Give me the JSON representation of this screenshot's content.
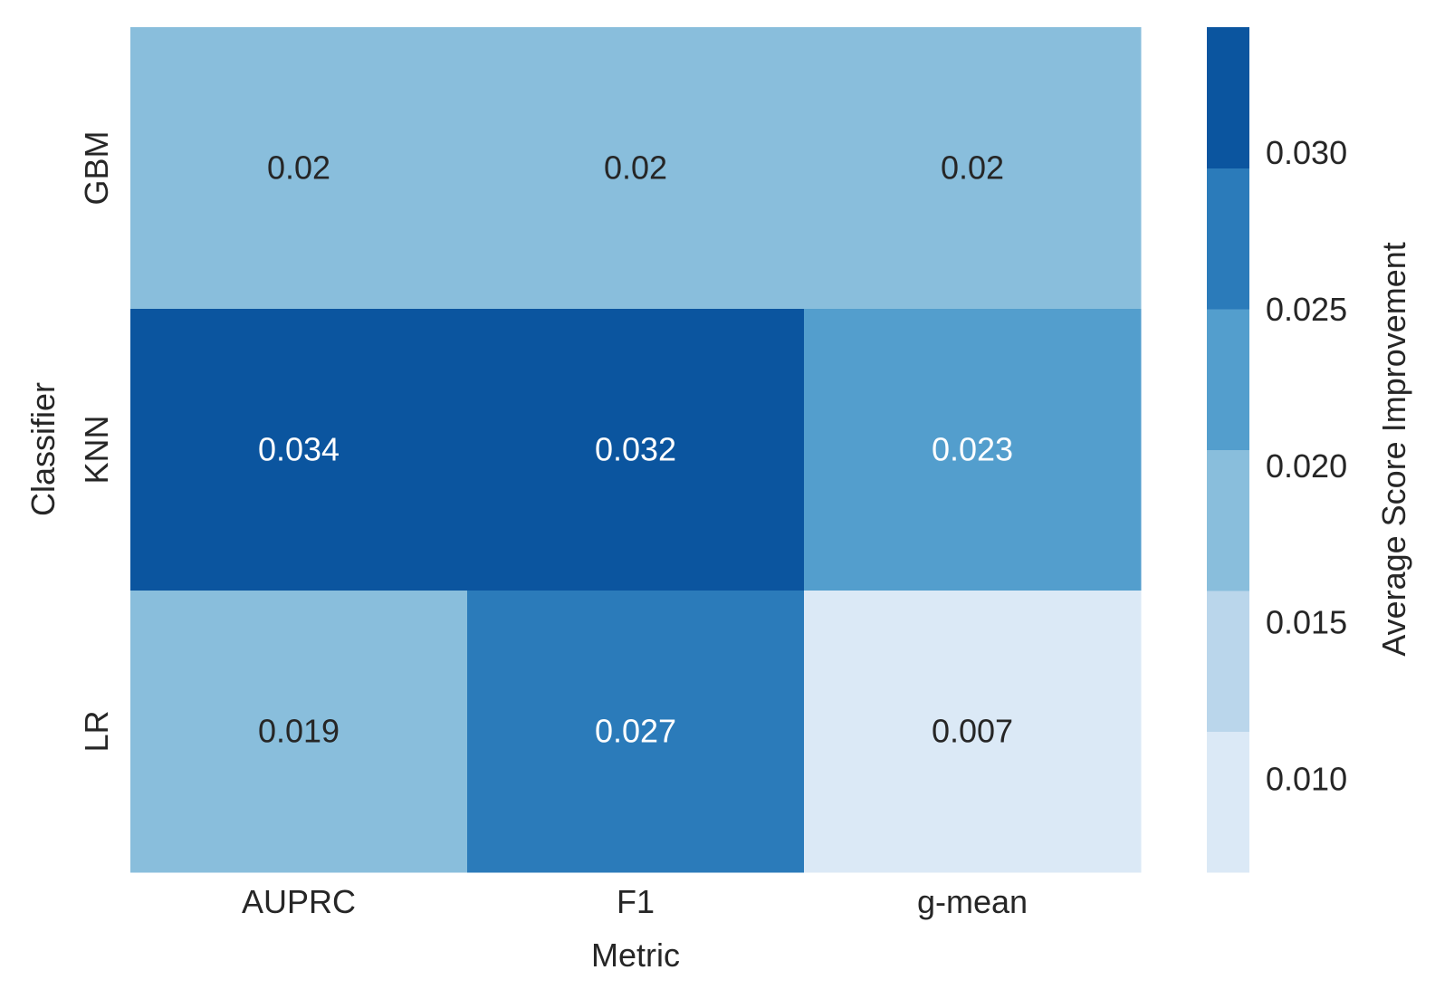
{
  "chart_data": {
    "type": "heatmap",
    "x_categories": [
      "AUPRC",
      "F1",
      "g-mean"
    ],
    "y_categories": [
      "GBM",
      "KNN",
      "LR"
    ],
    "values": [
      [
        0.02,
        0.02,
        0.02
      ],
      [
        0.034,
        0.032,
        0.023
      ],
      [
        0.019,
        0.027,
        0.007
      ]
    ],
    "cell_labels": [
      [
        "0.02",
        "0.02",
        "0.02"
      ],
      [
        "0.034",
        "0.032",
        "0.023"
      ],
      [
        "0.019",
        "0.027",
        "0.007"
      ]
    ],
    "xlabel": "Metric",
    "ylabel": "Classifier",
    "colorbar": {
      "label": "Average Score Improvement",
      "range": [
        0.007,
        0.034
      ],
      "ticks": [
        0.01,
        0.015,
        0.02,
        0.025,
        0.03
      ],
      "tick_labels": [
        "0.010",
        "0.015",
        "0.020",
        "0.025",
        "0.030"
      ],
      "bins": [
        {
          "from": 0.007,
          "to": 0.0115,
          "color": "#dbe9f6"
        },
        {
          "from": 0.0115,
          "to": 0.016,
          "color": "#bad6eb"
        },
        {
          "from": 0.016,
          "to": 0.0205,
          "color": "#89bedc"
        },
        {
          "from": 0.0205,
          "to": 0.025,
          "color": "#539ecd"
        },
        {
          "from": 0.025,
          "to": 0.0295,
          "color": "#2b7bba"
        },
        {
          "from": 0.0295,
          "to": 0.034,
          "color": "#0b559f"
        }
      ]
    },
    "colormap": "Blues (6 discrete levels)",
    "grid": false
  }
}
